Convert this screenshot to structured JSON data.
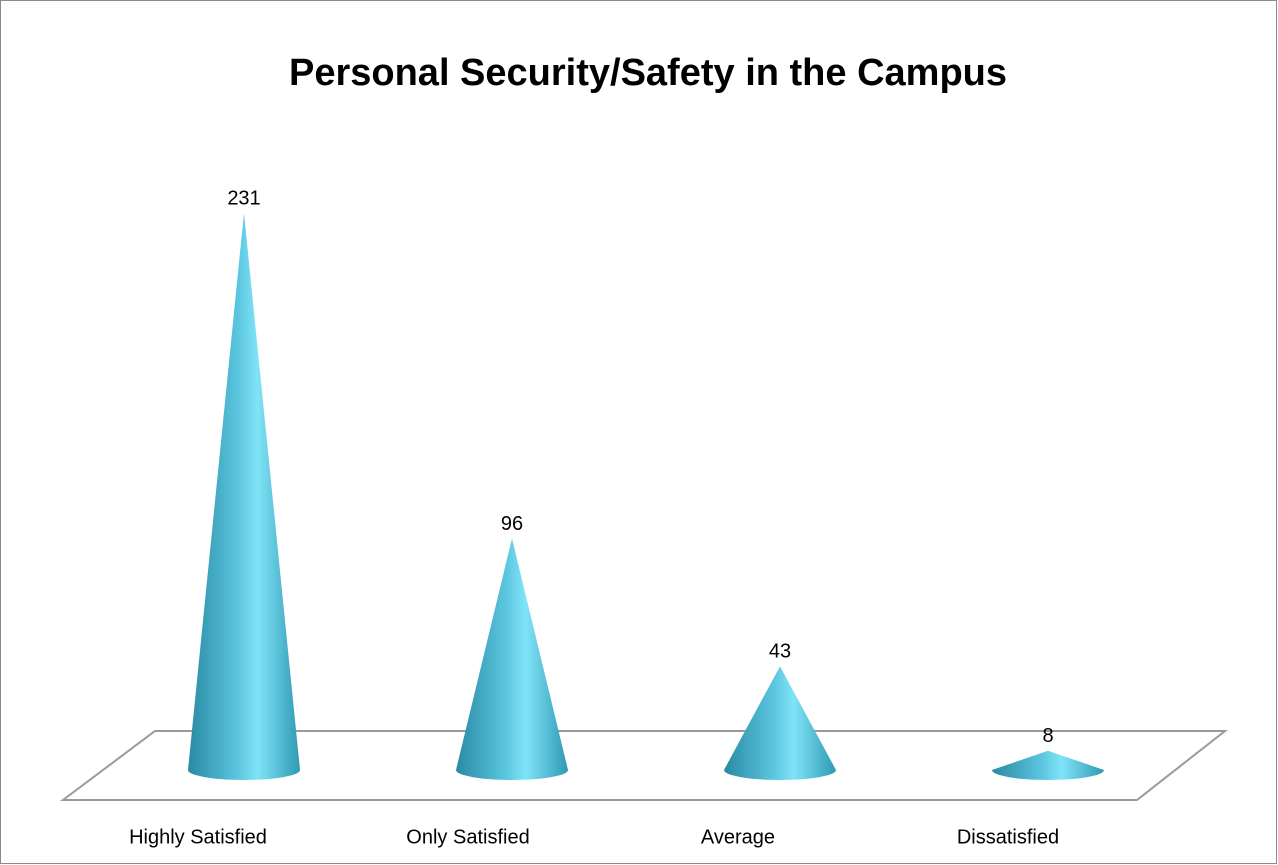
{
  "chart_data": {
    "type": "cone",
    "title": "Personal Security/Safety in the Campus",
    "categories": [
      "Highly Satisfied",
      "Only Satisfied",
      "Average",
      "Dissatisfied"
    ],
    "values": [
      231,
      96,
      43,
      8
    ],
    "color": "#3fb0cc"
  }
}
